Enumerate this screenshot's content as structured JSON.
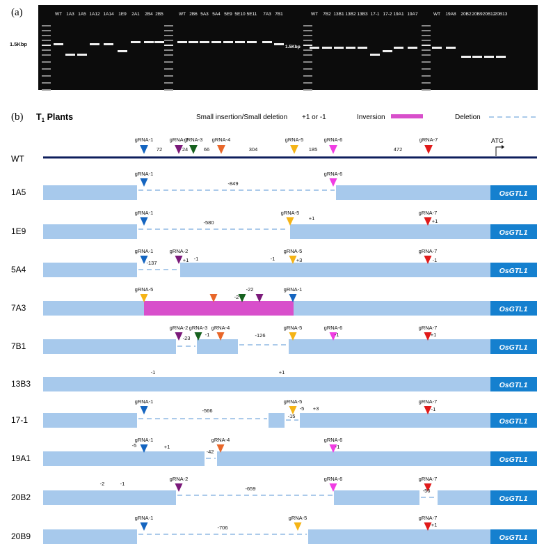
{
  "panel_a": {
    "label": "(a)",
    "marker_label": "1.5Kbp",
    "gel1_lanes": [
      "WT",
      "1A3",
      "1A5",
      "1A12",
      "1A14",
      "1E9",
      "2A1",
      "2B4",
      "2B5",
      "WT",
      "2B6",
      "5A3",
      "5A4",
      "5E9",
      "5E10",
      "5E11",
      "7A3",
      "7B1"
    ],
    "gel2_lanes": [
      "WT",
      "7B2",
      "13B1",
      "13B2",
      "13B3",
      "17-1",
      "17-2",
      "19A1",
      "19A7",
      "WT",
      "19A8",
      "20B2",
      "20B9",
      "20B12",
      "20B13"
    ]
  },
  "panel_b": {
    "label": "(b)",
    "title": "T",
    "title_sub": "1",
    "title_rest": " Plants",
    "legend": {
      "small_indel": "Small insertion/Small deletion",
      "small_indel_values": "+1 or -1",
      "inversion": "Inversion",
      "deletion": "Deletion"
    },
    "colors": {
      "box": "#a7c9ec",
      "inversion": "#d84fcb",
      "gene_box": "#1580cf",
      "wt_line": "#0d1e5c",
      "deletion": "#8fb8e3"
    },
    "gene_name": "OsGTL1",
    "atg": "ATG",
    "grnas": [
      {
        "name": "gRNA-1",
        "color": "#1565c0"
      },
      {
        "name": "gRNA-2",
        "color": "#7b1a7a"
      },
      {
        "name": "gRNA-3",
        "color": "#17621f"
      },
      {
        "name": "gRNA-4",
        "color": "#e8672a"
      },
      {
        "name": "gRNA-5",
        "color": "#f5b416"
      },
      {
        "name": "gRNA-6",
        "color": "#f03de3"
      },
      {
        "name": "gRNA-7",
        "color": "#e01a1a"
      }
    ],
    "wt": {
      "name": "WT",
      "distances": [
        "72",
        "24",
        "66",
        "304",
        "185",
        "472"
      ]
    },
    "rows": [
      {
        "name": "1A5",
        "marks": [
          {
            "g": 0,
            "label": true
          },
          {
            "g": 5,
            "label": true
          }
        ],
        "texts": [
          "-849"
        ]
      },
      {
        "name": "1E9",
        "marks": [
          {
            "g": 0,
            "label": true
          },
          {
            "g": 4,
            "label": true
          },
          {
            "g": 6,
            "label": true
          }
        ],
        "texts": [
          "-580",
          "+1",
          "+1"
        ]
      },
      {
        "name": "5A4",
        "marks": [
          {
            "g": 0,
            "label": true
          },
          {
            "g": 1,
            "label": true
          },
          {
            "g": 4,
            "label": true
          },
          {
            "g": 6,
            "label": true
          }
        ],
        "texts": [
          "-137",
          "+1",
          "-1",
          "-1",
          "+3",
          "-1"
        ]
      },
      {
        "name": "7A3",
        "marks": [
          {
            "g": 4,
            "label": true
          },
          {
            "g": 3,
            "label": false
          },
          {
            "g": 2,
            "label": false
          },
          {
            "g": 1,
            "label": false
          },
          {
            "g": 0,
            "label": true
          }
        ],
        "texts": [
          "-22",
          "-2"
        ]
      },
      {
        "name": "7B1",
        "marks": [
          {
            "g": 1,
            "label": true
          },
          {
            "g": 2,
            "label": true
          },
          {
            "g": 3,
            "label": true
          },
          {
            "g": 4,
            "label": true
          },
          {
            "g": 5,
            "label": true
          },
          {
            "g": 6,
            "label": true
          }
        ],
        "texts": [
          "-23",
          "-1",
          "-126",
          "-1",
          "+1"
        ]
      },
      {
        "name": "13B3",
        "marks": [],
        "texts": [
          "-1",
          "+1"
        ]
      },
      {
        "name": "17-1",
        "marks": [
          {
            "g": 0,
            "label": true
          },
          {
            "g": 4,
            "label": true
          },
          {
            "g": 6,
            "label": true
          }
        ],
        "texts": [
          "-566",
          "-5",
          "+3",
          "-15",
          "-1"
        ]
      },
      {
        "name": "19A1",
        "marks": [
          {
            "g": 0,
            "label": true
          },
          {
            "g": 3,
            "label": true
          },
          {
            "g": 5,
            "label": true
          }
        ],
        "texts": [
          "-5",
          "+1",
          "-42",
          "-1"
        ]
      },
      {
        "name": "20B2",
        "marks": [
          {
            "g": 1,
            "label": true
          },
          {
            "g": 5,
            "label": true
          },
          {
            "g": 6,
            "label": true
          }
        ],
        "texts": [
          "-2",
          "-1",
          "-659",
          "-56"
        ]
      },
      {
        "name": "20B9",
        "marks": [
          {
            "g": 0,
            "label": true
          },
          {
            "g": 4,
            "label": true
          },
          {
            "g": 6,
            "label": true
          }
        ],
        "texts": [
          "-706",
          "+1"
        ]
      }
    ]
  }
}
